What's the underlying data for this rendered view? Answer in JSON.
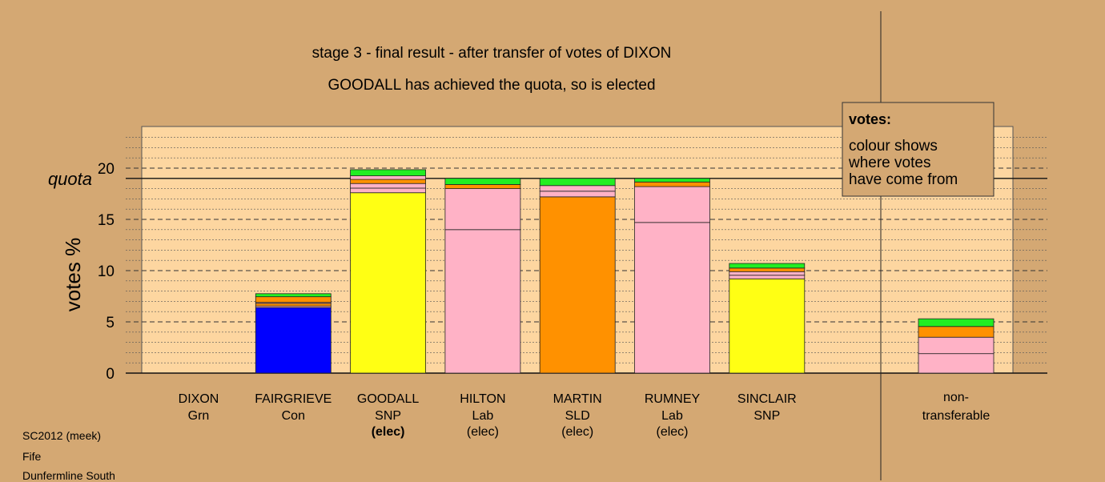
{
  "chart_data": {
    "type": "bar",
    "stacked": true,
    "title": "stage 3 - final result - after transfer of votes of DIXON",
    "subtitle": "GOODALL has achieved the quota, so is elected",
    "ylabel": "votes %",
    "ylim": [
      0,
      24
    ],
    "yticks": [
      "0",
      "5",
      "10",
      "15",
      "20"
    ],
    "quota_label": "quota",
    "quota": 19.0,
    "legend": {
      "title": "votes:",
      "lines": [
        "colour shows",
        "where votes",
        "have come from"
      ],
      "position": "top-right"
    },
    "colors": {
      "green": "#22ee22",
      "orange": "#ff9100",
      "pink": "#ffb2c6",
      "yellow": "#ffff14",
      "blue": "#0000ff",
      "panel": "#fdd6a0",
      "background": "#d4a873"
    },
    "candidates": [
      {
        "name": "DIXON",
        "party": "Grn",
        "status": "",
        "total": 0,
        "segments": []
      },
      {
        "name": "FAIRGRIEVE",
        "party": "Con",
        "status": "",
        "segments": [
          {
            "color": "blue",
            "value": 6.4
          },
          {
            "color": "pink",
            "value": 0.15
          },
          {
            "color": "orange",
            "value": 0.25
          },
          {
            "color": "pink",
            "value": 0.1
          },
          {
            "color": "orange",
            "value": 0.55
          },
          {
            "color": "green",
            "value": 0.3
          }
        ]
      },
      {
        "name": "GOODALL",
        "party": "SNP",
        "status": "(elec)",
        "status_bold": true,
        "segments": [
          {
            "color": "yellow",
            "value": 17.6
          },
          {
            "color": "pink",
            "value": 0.45
          },
          {
            "color": "pink",
            "value": 0.45
          },
          {
            "color": "orange",
            "value": 0.4
          },
          {
            "color": "pink",
            "value": 0.35
          },
          {
            "color": "green",
            "value": 0.6
          }
        ]
      },
      {
        "name": "HILTON",
        "party": "Lab",
        "status": "(elec)",
        "segments": [
          {
            "color": "pink",
            "value": 14.0
          },
          {
            "color": "pink",
            "value": 4.0
          },
          {
            "color": "orange",
            "value": 0.4
          },
          {
            "color": "green",
            "value": 0.6
          }
        ]
      },
      {
        "name": "MARTIN",
        "party": "SLD",
        "status": "(elec)",
        "segments": [
          {
            "color": "orange",
            "value": 17.2
          },
          {
            "color": "pink",
            "value": 0.55
          },
          {
            "color": "pink",
            "value": 0.55
          },
          {
            "color": "green",
            "value": 0.7
          }
        ]
      },
      {
        "name": "RUMNEY",
        "party": "Lab",
        "status": "(elec)",
        "segments": [
          {
            "color": "pink",
            "value": 14.7
          },
          {
            "color": "pink",
            "value": 3.5
          },
          {
            "color": "orange",
            "value": 0.45
          },
          {
            "color": "green",
            "value": 0.35
          }
        ]
      },
      {
        "name": "SINCLAIR",
        "party": "SNP",
        "status": "",
        "segments": [
          {
            "color": "yellow",
            "value": 9.2
          },
          {
            "color": "pink",
            "value": 0.35
          },
          {
            "color": "pink",
            "value": 0.35
          },
          {
            "color": "orange",
            "value": 0.35
          },
          {
            "color": "green",
            "value": 0.45
          }
        ]
      }
    ],
    "nontransferable": {
      "label_line1": "non-",
      "label_line2": "transferable",
      "segments": [
        {
          "color": "pink",
          "value": 1.9
        },
        {
          "color": "pink",
          "value": 1.6
        },
        {
          "color": "orange",
          "value": 1.05
        },
        {
          "color": "green",
          "value": 0.75
        }
      ]
    }
  },
  "meta": {
    "line1": "SC2012 (meek)",
    "line2": "Fife",
    "line3": "Dunfermline South"
  }
}
